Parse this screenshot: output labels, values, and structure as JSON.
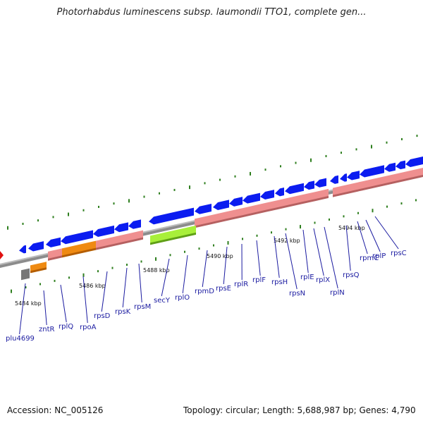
{
  "title": "Photorhabdus luminescens subsp. laumondii TTO1, complete gen...",
  "footer": {
    "accession": "Accession: NC_005126",
    "summary": "Topology: circular; Length: 5,688,987 bp; Genes: 4,790"
  },
  "scale_labels": [
    "5484 kbp",
    "5486 kbp",
    "5488 kbp",
    "5490 kbp",
    "5492 kbp",
    "5494 kbp"
  ],
  "gene_labels": [
    "plu4699",
    "zntR",
    "rplQ",
    "rpoA",
    "rpsD",
    "rpsK",
    "rpsM",
    "secY",
    "rplO",
    "rpmD",
    "rpsE",
    "rplR",
    "rplF",
    "rpsH",
    "rpsN",
    "rplE",
    "rplX",
    "rplN",
    "rpsQ",
    "rpmC",
    "rplP",
    "rpsC"
  ],
  "colors": {
    "backbone": "#8c8c8c",
    "cds_blue": "#0b1cf0",
    "rrna_pink": "#ef8f8f",
    "rpoA_orange": "#ef8a12",
    "secY_green": "#a8ef3a",
    "tick_green": "#2f7f1f",
    "label_blue": "#1a1aa0",
    "marker_red": "#e01010"
  }
}
